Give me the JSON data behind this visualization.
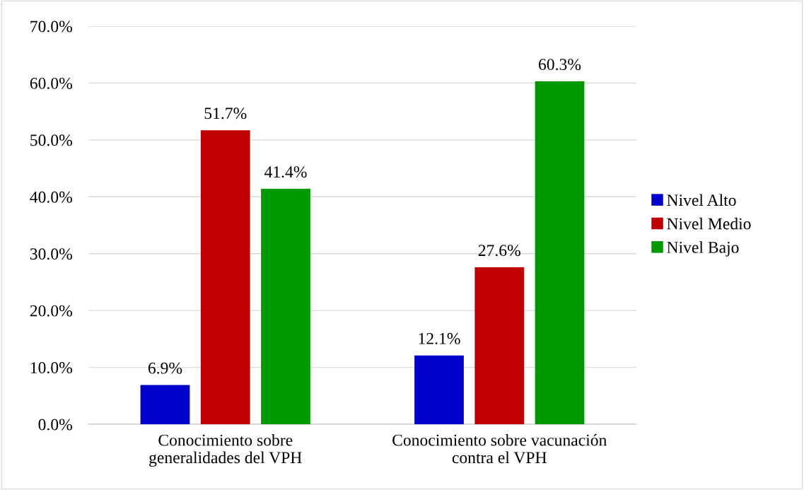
{
  "chart_data": {
    "type": "bar",
    "categories": [
      "Conocimiento sobre\ngeneralidades del VPH",
      "Conocimiento sobre vacunación\ncontra el VPH"
    ],
    "series": [
      {
        "name": "Nivel Alto",
        "color": "#0000cc",
        "values": [
          6.9,
          12.1
        ],
        "value_labels": [
          "6.9%",
          "12.1%"
        ]
      },
      {
        "name": "Nivel Medio",
        "color": "#c00000",
        "values": [
          51.7,
          27.6
        ],
        "value_labels": [
          "51.7%",
          "27.6%"
        ]
      },
      {
        "name": "Nivel Bajo",
        "color": "#009900",
        "values": [
          41.4,
          60.3
        ],
        "value_labels": [
          "41.4%",
          "60.3%"
        ]
      }
    ],
    "ylim": [
      0,
      70
    ],
    "yticks": [
      {
        "value": 0,
        "label": "0.0%"
      },
      {
        "value": 10,
        "label": "10.0%"
      },
      {
        "value": 20,
        "label": "20.0%"
      },
      {
        "value": 30,
        "label": "30.0%"
      },
      {
        "value": 40,
        "label": "40.0%"
      },
      {
        "value": 50,
        "label": "50.0%"
      },
      {
        "value": 60,
        "label": "60.0%"
      },
      {
        "value": 70,
        "label": "70.0%"
      }
    ],
    "grid": "y",
    "legend": "right"
  }
}
